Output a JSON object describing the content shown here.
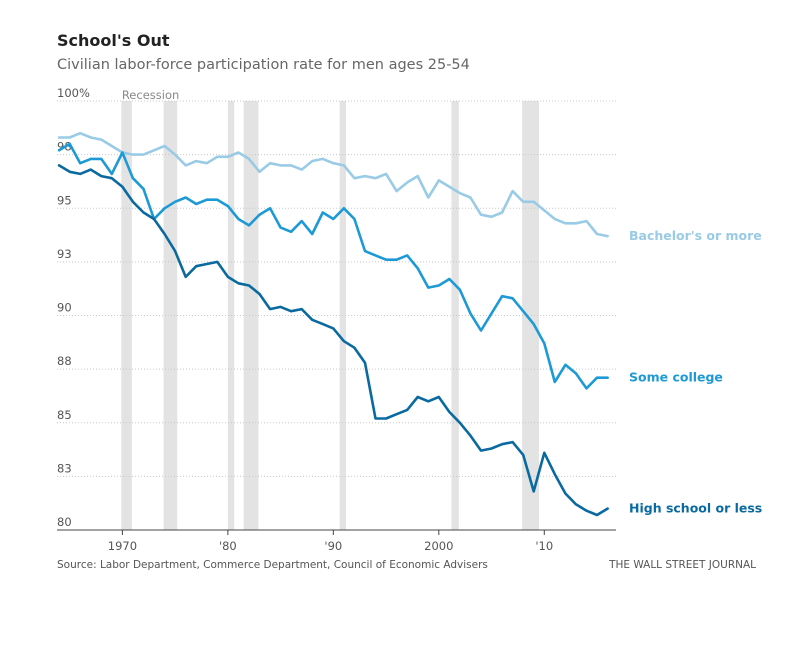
{
  "chart_data": {
    "type": "line",
    "title": "School's Out",
    "subtitle": "Civilian labor-force participation rate for men ages 25-54",
    "ylim": [
      80,
      100
    ],
    "xlim": [
      1963.8,
      2016.8
    ],
    "y_ticks": [
      {
        "value": 100,
        "label": "100%"
      },
      {
        "value": 97.5,
        "label": "98"
      },
      {
        "value": 95,
        "label": "95"
      },
      {
        "value": 92.5,
        "label": "93"
      },
      {
        "value": 90,
        "label": "90"
      },
      {
        "value": 87.5,
        "label": "88"
      },
      {
        "value": 85,
        "label": "85"
      },
      {
        "value": 82.5,
        "label": "83"
      },
      {
        "value": 80,
        "label": "80"
      }
    ],
    "x_ticks": [
      {
        "value": 1970,
        "label": "1970"
      },
      {
        "value": 1980,
        "label": "'80"
      },
      {
        "value": 1990,
        "label": "'90"
      },
      {
        "value": 2000,
        "label": "2000"
      },
      {
        "value": 2010,
        "label": "'10"
      }
    ],
    "recession_label": "Recession",
    "recessions": [
      [
        1969.9,
        1970.9
      ],
      [
        1973.9,
        1975.2
      ],
      [
        1980.0,
        1980.6
      ],
      [
        1981.5,
        1982.9
      ],
      [
        1990.6,
        1991.2
      ],
      [
        2001.2,
        2001.9
      ],
      [
        2007.9,
        2009.5
      ]
    ],
    "series": [
      {
        "name": "Bachelor's or more",
        "color": "#99cbe6",
        "x": [
          1964,
          1965,
          1966,
          1967,
          1968,
          1969,
          1970,
          1971,
          1972,
          1973,
          1974,
          1975,
          1976,
          1977,
          1978,
          1979,
          1980,
          1981,
          1982,
          1983,
          1984,
          1985,
          1986,
          1987,
          1988,
          1989,
          1990,
          1991,
          1992,
          1993,
          1994,
          1995,
          1996,
          1997,
          1998,
          1999,
          2000,
          2001,
          2002,
          2003,
          2004,
          2005,
          2006,
          2007,
          2008,
          2009,
          2010,
          2011,
          2012,
          2013,
          2014,
          2015,
          2016
        ],
        "values": [
          98.3,
          98.3,
          98.5,
          98.3,
          98.2,
          97.9,
          97.6,
          97.5,
          97.5,
          97.7,
          97.9,
          97.5,
          97.0,
          97.2,
          97.1,
          97.4,
          97.4,
          97.6,
          97.3,
          96.7,
          97.1,
          97.0,
          97.0,
          96.8,
          97.2,
          97.3,
          97.1,
          97.0,
          96.4,
          96.5,
          96.4,
          96.6,
          95.8,
          96.2,
          96.5,
          95.5,
          96.3,
          96.0,
          95.7,
          95.5,
          94.7,
          94.6,
          94.8,
          95.8,
          95.3,
          95.3,
          94.9,
          94.5,
          94.3,
          94.3,
          94.4,
          93.8,
          93.7
        ]
      },
      {
        "name": "Some college",
        "color": "#1d9ad6",
        "x": [
          1964,
          1965,
          1966,
          1967,
          1968,
          1969,
          1970,
          1971,
          1972,
          1973,
          1974,
          1975,
          1976,
          1977,
          1978,
          1979,
          1980,
          1981,
          1982,
          1983,
          1984,
          1985,
          1986,
          1987,
          1988,
          1989,
          1990,
          1991,
          1992,
          1993,
          1994,
          1995,
          1996,
          1997,
          1998,
          1999,
          2000,
          2001,
          2002,
          2003,
          2004,
          2005,
          2006,
          2007,
          2008,
          2009,
          2010,
          2011,
          2012,
          2013,
          2014,
          2015,
          2016
        ],
        "values": [
          97.7,
          98.0,
          97.1,
          97.3,
          97.3,
          96.6,
          97.6,
          96.4,
          95.9,
          94.5,
          95.0,
          95.3,
          95.5,
          95.2,
          95.4,
          95.4,
          95.1,
          94.5,
          94.2,
          94.7,
          95.0,
          94.1,
          93.9,
          94.4,
          93.8,
          94.8,
          94.5,
          95.0,
          94.5,
          93.0,
          92.8,
          92.6,
          92.6,
          92.8,
          92.2,
          91.3,
          91.4,
          91.7,
          91.2,
          90.1,
          89.3,
          90.1,
          90.9,
          90.8,
          90.2,
          89.6,
          88.7,
          86.9,
          87.7,
          87.3,
          86.6,
          87.1,
          87.1
        ]
      },
      {
        "name": "High school or less",
        "color": "#0a6aa0",
        "x": [
          1964,
          1965,
          1966,
          1967,
          1968,
          1969,
          1970,
          1971,
          1972,
          1973,
          1974,
          1975,
          1976,
          1977,
          1978,
          1979,
          1980,
          1981,
          1982,
          1983,
          1984,
          1985,
          1986,
          1987,
          1988,
          1989,
          1990,
          1991,
          1992,
          1993,
          1994,
          1995,
          1996,
          1997,
          1998,
          1999,
          2000,
          2001,
          2002,
          2003,
          2004,
          2005,
          2006,
          2007,
          2008,
          2009,
          2010,
          2011,
          2012,
          2013,
          2014,
          2015,
          2016
        ],
        "values": [
          97.0,
          96.7,
          96.6,
          96.8,
          96.5,
          96.4,
          96.0,
          95.3,
          94.8,
          94.5,
          93.8,
          93.0,
          91.8,
          92.3,
          92.4,
          92.5,
          91.8,
          91.5,
          91.4,
          91.0,
          90.3,
          90.4,
          90.2,
          90.3,
          89.8,
          89.6,
          89.4,
          88.8,
          88.5,
          87.8,
          85.2,
          85.2,
          85.4,
          85.6,
          86.2,
          86.0,
          86.2,
          85.5,
          85.0,
          84.4,
          83.7,
          83.8,
          84.0,
          84.1,
          83.5,
          81.8,
          83.6,
          82.6,
          81.7,
          81.2,
          80.9,
          80.7,
          81.0
        ]
      }
    ],
    "source": "Source: Labor Department, Commerce Department, Council of Economic Advisers",
    "credit": "THE WALL STREET JOURNAL"
  }
}
